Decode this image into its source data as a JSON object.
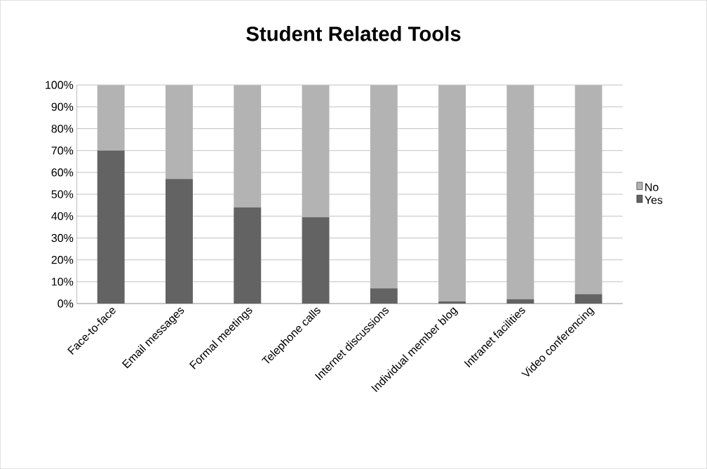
{
  "chart_data": {
    "type": "bar",
    "title": "Student Related Tools",
    "stacked": true,
    "categories": [
      "Face-to-face",
      "Email messages",
      "Formal meetings",
      "Telephone calls",
      "Internet discussions",
      "Individual member blog",
      "Intranet facilities",
      "Video conferencing"
    ],
    "series": [
      {
        "name": "Yes",
        "color": "#636363",
        "values": [
          70,
          57,
          44,
          39.5,
          7,
          1,
          2,
          4.3
        ]
      },
      {
        "name": "No",
        "color": "#b3b3b3",
        "values": [
          30,
          43,
          56,
          60.5,
          93,
          99,
          98,
          95.7
        ]
      }
    ],
    "ylim": [
      0,
      100
    ],
    "yticks": [
      {
        "value": 0,
        "label": "0%"
      },
      {
        "value": 10,
        "label": "10%"
      },
      {
        "value": 20,
        "label": "20%"
      },
      {
        "value": 30,
        "label": "30%"
      },
      {
        "value": 40,
        "label": "40%"
      },
      {
        "value": 50,
        "label": "50%"
      },
      {
        "value": 60,
        "label": "60%"
      },
      {
        "value": 70,
        "label": "70%"
      },
      {
        "value": 80,
        "label": "80%"
      },
      {
        "value": 90,
        "label": "90%"
      },
      {
        "value": 100,
        "label": "100%"
      }
    ],
    "grid": "y",
    "legend": "right"
  }
}
